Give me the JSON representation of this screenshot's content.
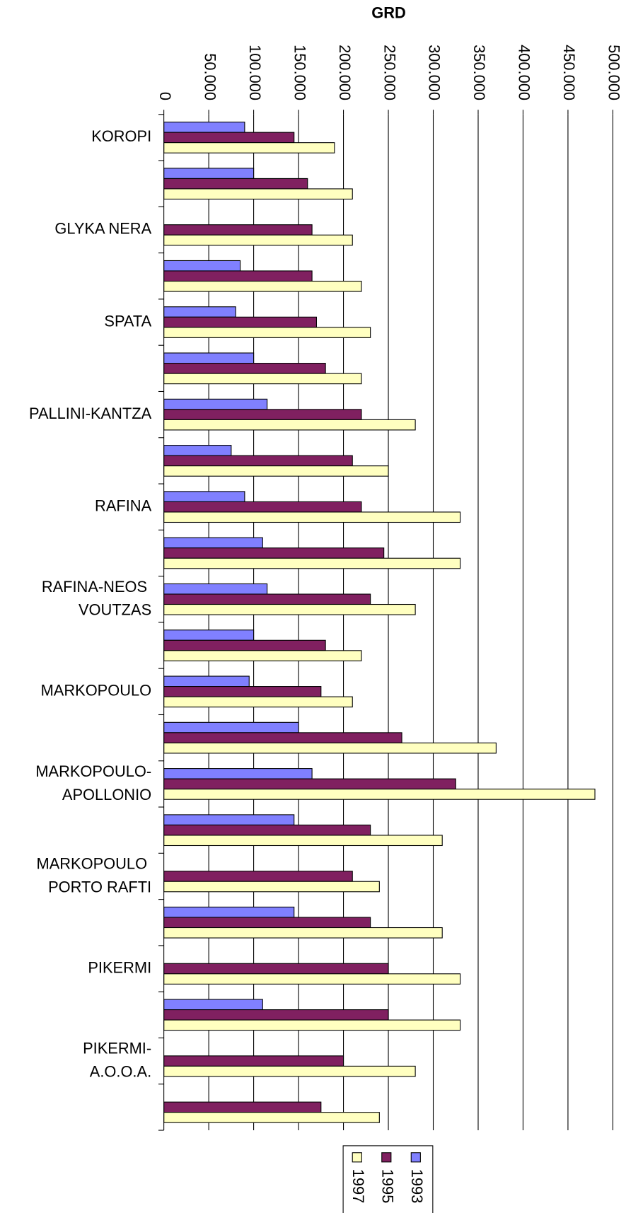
{
  "chart_data": {
    "type": "bar",
    "orientation": "horizontal",
    "title": "GRD",
    "categories": [
      "KOROPI",
      null,
      "GLYKA NERA",
      null,
      "SPATA",
      null,
      "PALLINI-KANTZA",
      null,
      "RAFINA",
      null,
      "RAFINA-NEOS VOUTZAS",
      null,
      "MARKOPOULO",
      null,
      "MARKOPOULO-APOLLONIO",
      null,
      "MARKOPOULO PORTO RAFTI",
      null,
      "PIKERMI",
      null,
      "PIKERMI-A.O.O.A.",
      null
    ],
    "series": [
      {
        "name": "1993",
        "color": "#8080ff",
        "values": [
          90000,
          100000,
          null,
          85000,
          80000,
          100000,
          115000,
          75000,
          90000,
          110000,
          115000,
          100000,
          95000,
          150000,
          165000,
          145000,
          null,
          145000,
          null,
          110000,
          null,
          null
        ]
      },
      {
        "name": "1995",
        "color": "#802060",
        "values": [
          145000,
          160000,
          165000,
          165000,
          170000,
          180000,
          220000,
          210000,
          220000,
          245000,
          230000,
          180000,
          175000,
          265000,
          325000,
          230000,
          210000,
          230000,
          250000,
          250000,
          200000,
          175000
        ]
      },
      {
        "name": "1997",
        "color": "#ffffc0",
        "values": [
          190000,
          210000,
          210000,
          220000,
          230000,
          220000,
          280000,
          250000,
          330000,
          330000,
          280000,
          220000,
          210000,
          370000,
          480000,
          310000,
          240000,
          310000,
          330000,
          330000,
          280000,
          240000
        ]
      }
    ],
    "xlim": [
      0,
      500000
    ],
    "xticks": [
      0,
      {
        "value": 50000,
        "label": "50.000"
      },
      {
        "value": 100000,
        "label": "100.000"
      },
      {
        "value": 150000,
        "label": "150.000"
      },
      {
        "value": 200000,
        "label": "200.000"
      },
      {
        "value": 250000,
        "label": "250.000"
      },
      {
        "value": 300000,
        "label": "300.000"
      },
      {
        "value": 350000,
        "label": "350.000"
      },
      {
        "value": 400000,
        "label": "400.000"
      },
      {
        "value": 450000,
        "label": "450.000"
      },
      {
        "value": 500000,
        "label": "500.000"
      }
    ],
    "grid": true,
    "legend": "bottom"
  }
}
